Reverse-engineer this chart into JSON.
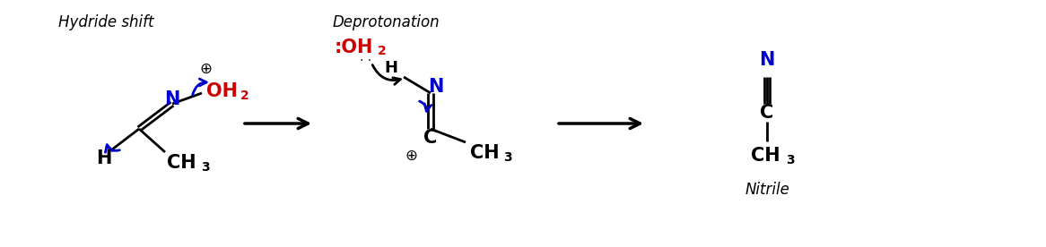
{
  "bg_color": "#ffffff",
  "blue_color": "#0000CC",
  "red_color": "#CC0000",
  "black_color": "#000000",
  "figsize": [
    11.66,
    2.76
  ],
  "dpi": 100,
  "label1": "Hydride shift",
  "label2": "Deprotonation",
  "label3": "Nitrile",
  "xlim": [
    0,
    11.66
  ],
  "ylim": [
    0,
    2.76
  ]
}
